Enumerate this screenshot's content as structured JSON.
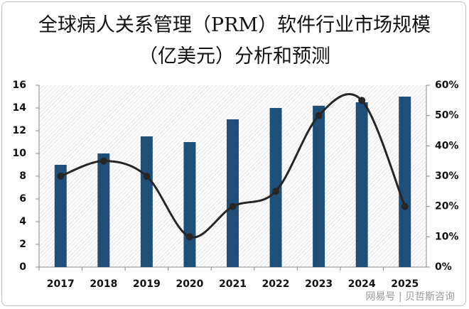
{
  "chart_data": {
    "type": "bar-line",
    "title": "全球病人关系管理（PRM）软件行业市场规模（亿美元）分析和预测",
    "categories": [
      "2017",
      "2018",
      "2019",
      "2020",
      "2021",
      "2022",
      "2023",
      "2024",
      "2025"
    ],
    "series": [
      {
        "type": "bar",
        "color": "#1f4e79",
        "values": [
          9,
          10,
          11.5,
          11,
          13,
          14,
          14.2,
          14.5,
          15
        ]
      },
      {
        "type": "line",
        "axis": "y2",
        "color": "#262626",
        "values": [
          30,
          35,
          30,
          10,
          20,
          25,
          50,
          55,
          20
        ]
      }
    ],
    "ylim": [
      0,
      16
    ],
    "yticks": [
      0,
      2,
      4,
      6,
      8,
      10,
      12,
      14,
      16
    ],
    "y2lim": [
      0,
      60
    ],
    "y2ticks": [
      {
        "value": 0,
        "label": "0%"
      },
      {
        "value": 10,
        "label": "10%"
      },
      {
        "value": 20,
        "label": "20%"
      },
      {
        "value": 30,
        "label": "30%"
      },
      {
        "value": 40,
        "label": "40%"
      },
      {
        "value": 50,
        "label": "50%"
      },
      {
        "value": 60,
        "label": "60%"
      }
    ],
    "watermark": "网易号 | 贝哲斯咨询"
  }
}
